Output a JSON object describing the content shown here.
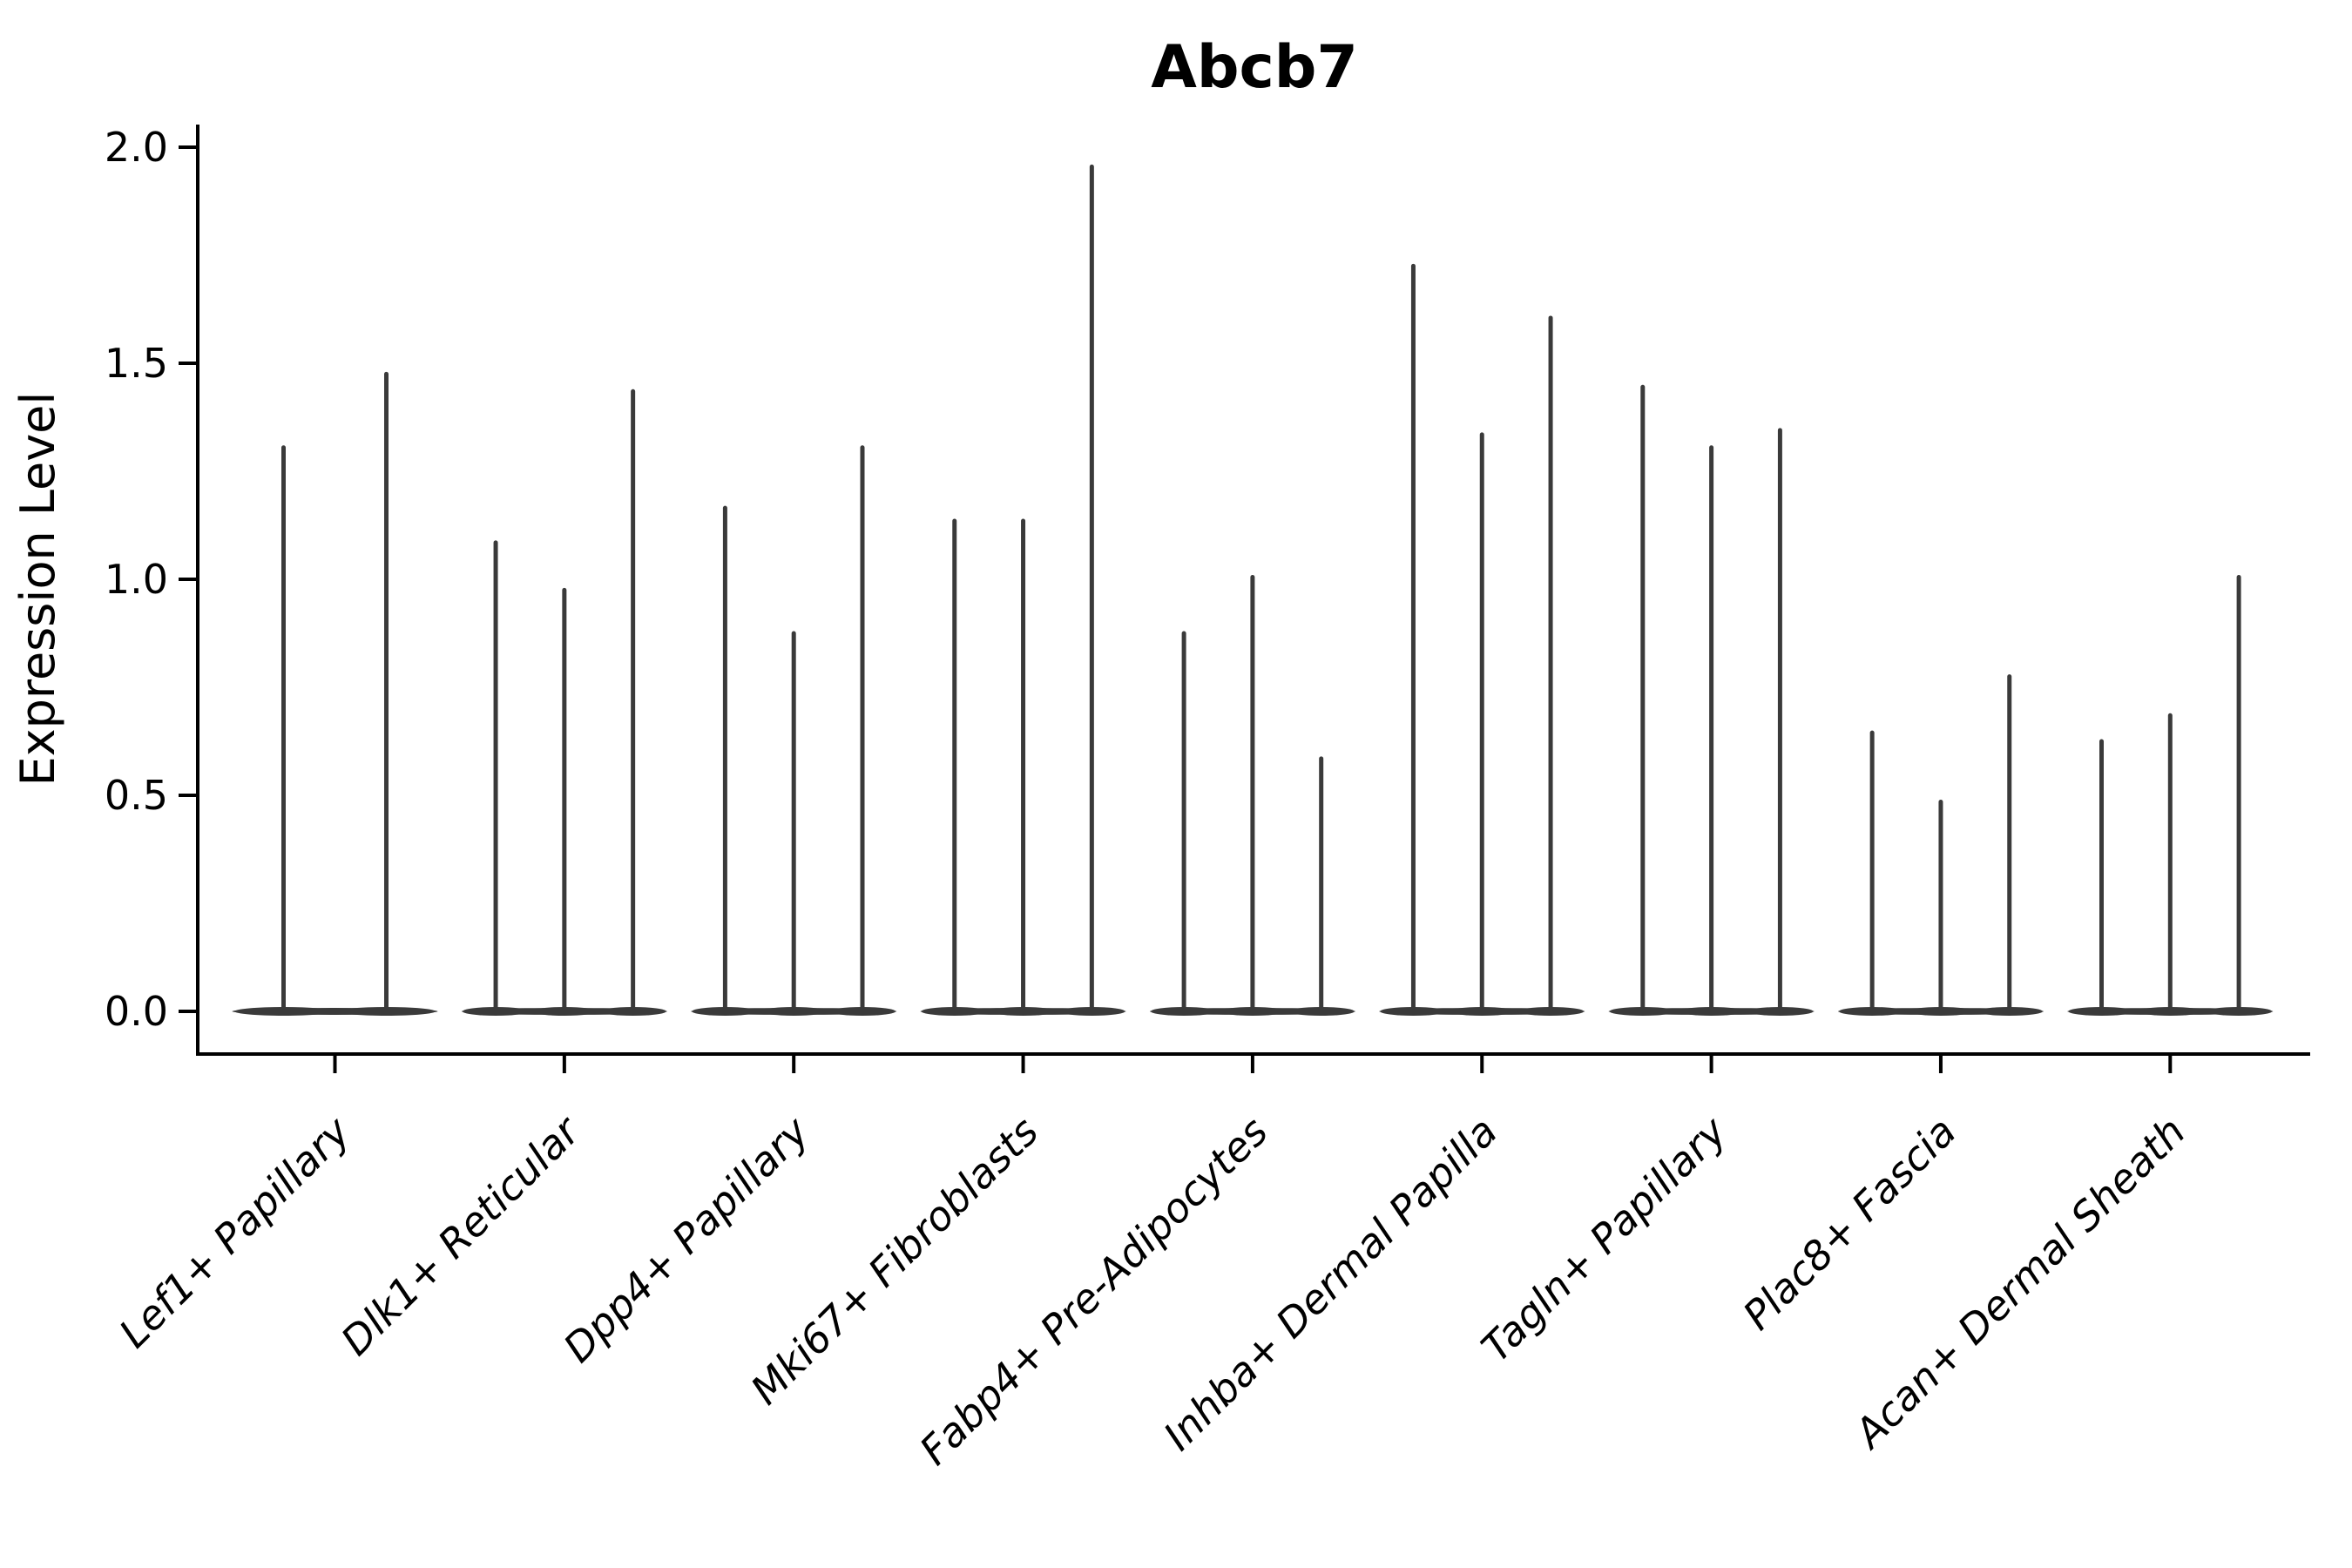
{
  "figure": {
    "title": "Abcb7",
    "background_color": "#ffffff"
  },
  "chart_data": {
    "type": "violin",
    "title": "Abcb7",
    "xlabel": "",
    "ylabel": "Expression Level",
    "ylim": [
      0.0,
      2.05
    ],
    "grid": false,
    "legend": "none",
    "axis_color": "#000000",
    "violin_color": "#3a3a3a",
    "yticks": [
      {
        "value": 0.0,
        "label": "0.0"
      },
      {
        "value": 0.5,
        "label": "0.5"
      },
      {
        "value": 1.0,
        "label": "1.0"
      },
      {
        "value": 1.5,
        "label": "1.5"
      },
      {
        "value": 2.0,
        "label": "2.0"
      }
    ],
    "categories": [
      "Lef1+ Papillary",
      "Dlk1+ Reticular",
      "Dpp4+ Papillary",
      "Mki67+ Fibroblasts",
      "Fabp4+ Pre-Adipocytes",
      "Inhba+ Dermal Papilla",
      "Tagln+ Papillary",
      "Plac8+ Fascia",
      "Acan+ Dermal Sheath"
    ],
    "groups": [
      {
        "label": "Lef1+ Papillary",
        "violin_maxima": [
          1.31,
          1.48
        ]
      },
      {
        "label": "Dlk1+ Reticular",
        "violin_maxima": [
          1.09,
          0.98,
          1.44
        ]
      },
      {
        "label": "Dpp4+ Papillary",
        "violin_maxima": [
          1.17,
          0.88,
          1.31
        ]
      },
      {
        "label": "Mki67+ Fibroblasts",
        "violin_maxima": [
          1.14,
          1.14,
          1.96
        ]
      },
      {
        "label": "Fabp4+ Pre-Adipocytes",
        "violin_maxima": [
          0.88,
          1.01,
          0.59
        ]
      },
      {
        "label": "Inhba+ Dermal Papilla",
        "violin_maxima": [
          1.73,
          1.34,
          1.61
        ]
      },
      {
        "label": "Tagln+ Papillary",
        "violin_maxima": [
          1.45,
          1.31,
          1.35
        ]
      },
      {
        "label": "Plac8+ Fascia",
        "violin_maxima": [
          0.65,
          0.49,
          0.78
        ]
      },
      {
        "label": "Acan+ Dermal Sheath",
        "violin_maxima": [
          0.63,
          0.69,
          1.01
        ]
      }
    ],
    "description": "Violin plot of Abcb7 expression per fibroblast cluster; each violin collapses to a wide flat mass at 0 with a thin needle rising to its maximum expression value."
  }
}
